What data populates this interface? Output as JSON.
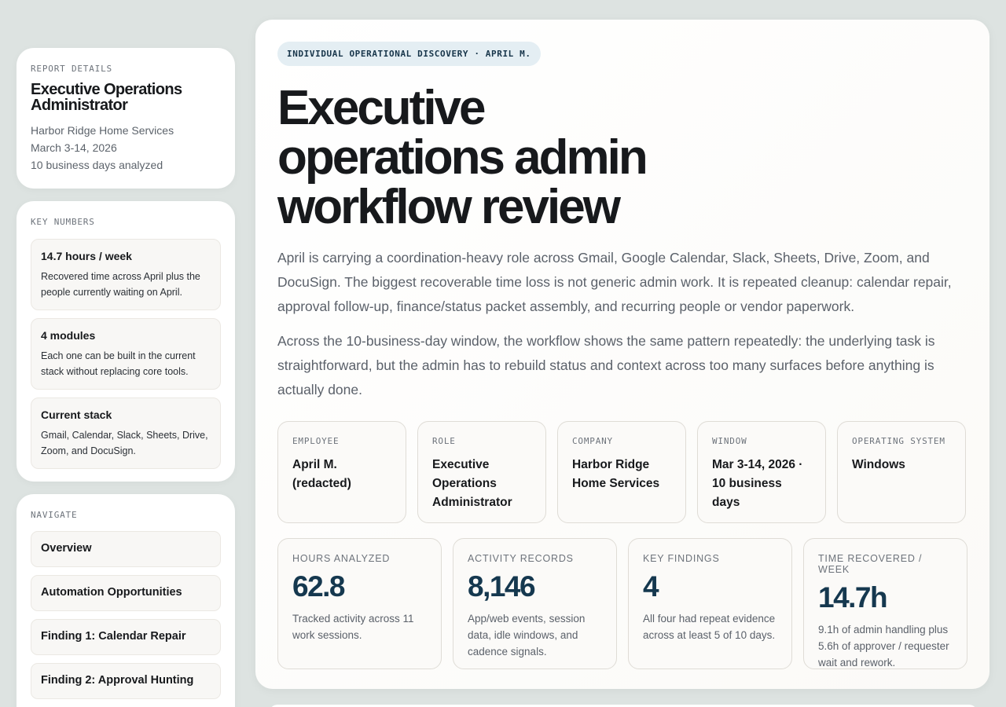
{
  "sidebar": {
    "details": {
      "label": "REPORT DETAILS",
      "title": "Executive Operations Administrator",
      "company": "Harbor Ridge Home Services",
      "dates": "March 3-14, 2026",
      "days": "10 business days analyzed"
    },
    "key_numbers": {
      "label": "KEY NUMBERS",
      "items": [
        {
          "title": "14.7 hours / week",
          "text": "Recovered time across April plus the people currently waiting on April."
        },
        {
          "title": "4 modules",
          "text": "Each one can be built in the current stack without replacing core tools."
        },
        {
          "title": "Current stack",
          "text": "Gmail, Calendar, Slack, Sheets, Drive, Zoom, and DocuSign."
        }
      ]
    },
    "navigate": {
      "label": "NAVIGATE",
      "items": [
        "Overview",
        "Automation Opportunities",
        "Finding 1: Calendar Repair",
        "Finding 2: Approval Hunting"
      ]
    }
  },
  "main": {
    "tag": "INDIVIDUAL OPERATIONAL DISCOVERY · APRIL M.",
    "headline": "Executive operations admin workflow review",
    "paragraphs": [
      "April is carrying a coordination-heavy role across Gmail, Google Calendar, Slack, Sheets, Drive, Zoom, and DocuSign. The biggest recoverable time loss is not generic admin work. It is repeated cleanup: calendar repair, approval follow-up, finance/status packet assembly, and recurring people or vendor paperwork.",
      "Across the 10-business-day window, the workflow shows the same pattern repeatedly: the underlying task is straightforward, but the admin has to rebuild status and context across too many surfaces before anything is actually done."
    ],
    "meta": [
      {
        "label": "EMPLOYEE",
        "value": "April M. (redacted)"
      },
      {
        "label": "ROLE",
        "value": "Executive Operations Administrator"
      },
      {
        "label": "COMPANY",
        "value": "Harbor Ridge Home Services"
      },
      {
        "label": "WINDOW",
        "value": "Mar 3-14, 2026 · 10 business days"
      },
      {
        "label": "OPERATING SYSTEM",
        "value": "Windows"
      }
    ],
    "stats": [
      {
        "label": "HOURS ANALYZED",
        "value": "62.8",
        "desc": "Tracked activity across 11 work sessions."
      },
      {
        "label": "ACTIVITY RECORDS",
        "value": "8,146",
        "desc": "App/web events, session data, idle windows, and cadence signals."
      },
      {
        "label": "KEY FINDINGS",
        "value": "4",
        "desc": "All four had repeat evidence across at least 5 of 10 days."
      },
      {
        "label": "TIME RECOVERED / WEEK",
        "value": "14.7h",
        "desc": "9.1h of admin handling plus 5.6h of approver / requester wait and rework."
      }
    ]
  }
}
